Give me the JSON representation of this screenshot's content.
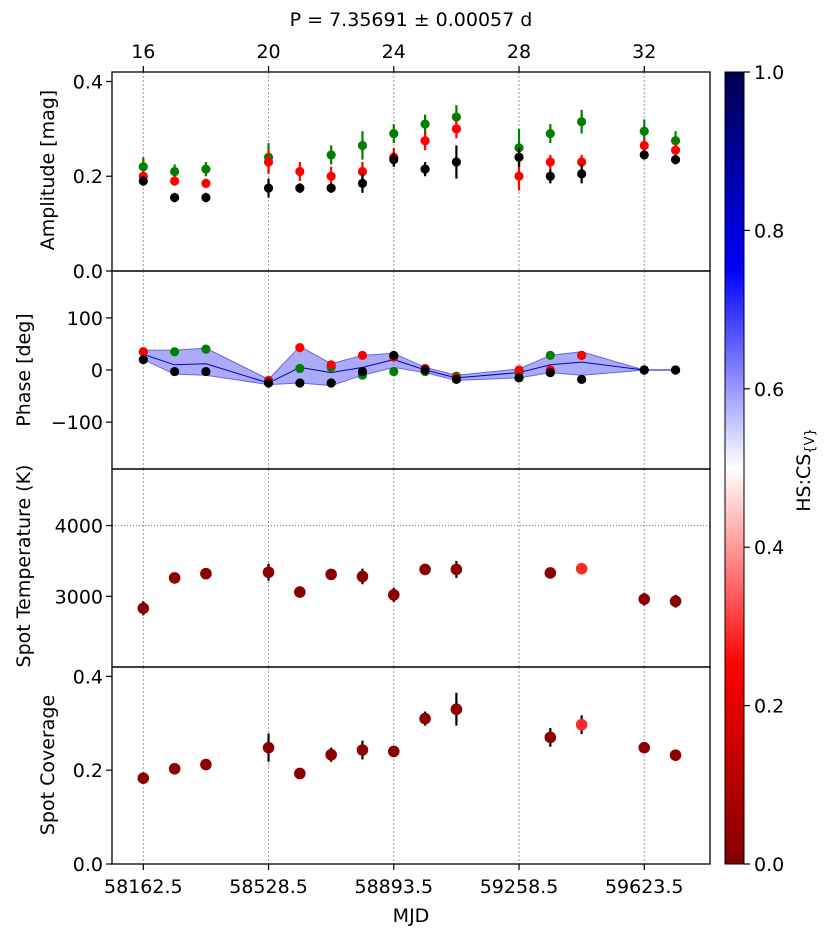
{
  "chart_data": [
    {
      "type": "scatter",
      "panel": "amplitude",
      "title": "P = 7.35691 ± 0.00057 d",
      "top_axis_ticks": [
        "16",
        "20",
        "24",
        "28",
        "32"
      ],
      "top_axis_ticks_values": [
        16,
        20,
        24,
        28,
        32
      ],
      "ylabel": "Amplitude [mag]",
      "ylim": [
        0,
        0.42
      ],
      "yticks": [
        0.0,
        0.2,
        0.4
      ],
      "ytick_labels": [
        "0.0",
        "0.2",
        "0.4"
      ],
      "x": [
        16,
        17,
        18,
        20,
        21,
        22,
        23,
        24,
        25,
        26,
        28,
        29,
        30,
        32,
        33
      ],
      "series": [
        {
          "name": "green",
          "color": "#008000",
          "values": [
            0.22,
            0.21,
            0.215,
            0.24,
            null,
            0.245,
            0.265,
            0.29,
            0.31,
            0.325,
            0.26,
            0.29,
            0.315,
            0.295,
            0.275
          ],
          "errors": [
            0.02,
            0.015,
            0.015,
            0.03,
            null,
            0.02,
            0.03,
            0.02,
            0.02,
            0.025,
            0.04,
            0.02,
            0.025,
            0.025,
            0.02
          ]
        },
        {
          "name": "red",
          "color": "#ff0000",
          "values": [
            0.2,
            0.19,
            0.185,
            0.23,
            0.21,
            0.2,
            0.21,
            0.24,
            0.275,
            0.3,
            0.2,
            0.23,
            0.23,
            0.265,
            0.255
          ],
          "errors": [
            0.01,
            0.01,
            0.01,
            0.025,
            0.02,
            0.02,
            0.02,
            0.02,
            0.02,
            0.02,
            0.03,
            0.015,
            0.015,
            0.015,
            0.015
          ]
        },
        {
          "name": "black",
          "color": "#000000",
          "values": [
            0.19,
            0.155,
            0.155,
            0.175,
            0.175,
            0.175,
            0.185,
            0.235,
            0.215,
            0.23,
            0.24,
            0.2,
            0.205,
            0.245,
            0.235
          ],
          "errors": [
            0.01,
            0.01,
            0.01,
            0.02,
            0.01,
            0.01,
            0.02,
            0.015,
            0.015,
            0.035,
            0.02,
            0.015,
            0.02,
            0.01,
            0.01
          ]
        }
      ]
    },
    {
      "type": "scatter",
      "panel": "phase",
      "ylabel": "Phase [deg]",
      "ylim": [
        -190,
        190
      ],
      "yticks": [
        -100,
        0,
        100
      ],
      "ytick_labels": [
        "−100",
        "0",
        "100"
      ],
      "x": [
        16,
        17,
        18,
        20,
        21,
        22,
        23,
        24,
        25,
        26,
        28,
        29,
        30,
        32,
        33
      ],
      "band": {
        "color": "#6666ee",
        "line_color": "#0000cc",
        "x": [
          16,
          17,
          18,
          20,
          21,
          22,
          23,
          24,
          25,
          26,
          28,
          29,
          30,
          32,
          33
        ],
        "mean": [
          30,
          10,
          12,
          -25,
          5,
          -5,
          5,
          20,
          0,
          -15,
          -5,
          10,
          15,
          0,
          0
        ],
        "lower": [
          20,
          -8,
          -10,
          -28,
          -25,
          -30,
          -10,
          5,
          -5,
          -20,
          -15,
          -5,
          -10,
          0,
          0
        ],
        "upper": [
          38,
          38,
          42,
          -18,
          45,
          12,
          28,
          32,
          5,
          -10,
          2,
          28,
          35,
          0,
          0
        ]
      },
      "series": [
        {
          "name": "green",
          "color": "#008000",
          "values": [
            35,
            35,
            40,
            -20,
            3,
            5,
            -10,
            -3,
            -3,
            -12,
            -5,
            28,
            28,
            0,
            0
          ]
        },
        {
          "name": "red",
          "color": "#ff0000",
          "values": [
            35,
            null,
            null,
            -20,
            43,
            10,
            28,
            25,
            3,
            -15,
            0,
            0,
            28,
            0,
            0
          ]
        },
        {
          "name": "black",
          "color": "#000000",
          "values": [
            20,
            -3,
            -3,
            -25,
            -25,
            -25,
            -3,
            28,
            0,
            -18,
            -15,
            -5,
            -18,
            0,
            0
          ]
        }
      ]
    },
    {
      "type": "scatter",
      "panel": "spot_temperature",
      "ylabel": "Spot Temperature (K)",
      "ylim": [
        2000,
        4800
      ],
      "yticks": [
        3000,
        4000
      ],
      "ytick_labels": [
        "3000",
        "4000"
      ],
      "reference_line": 4000,
      "x": [
        16,
        17,
        18,
        20,
        21,
        22,
        23,
        24,
        25,
        26,
        29,
        30,
        32,
        33
      ],
      "values": [
        2830,
        3260,
        3320,
        3340,
        3060,
        3310,
        3280,
        3020,
        3380,
        3380,
        3330,
        3390,
        2960,
        2930
      ],
      "errors": [
        100,
        40,
        60,
        120,
        80,
        60,
        110,
        100,
        40,
        120,
        70,
        60,
        90,
        90
      ],
      "colors": [
        "#8b0000",
        "#8b0000",
        "#8b0000",
        "#8b0000",
        "#8b0000",
        "#8b0000",
        "#8b0000",
        "#8b0000",
        "#8b0000",
        "#8b0000",
        "#8b0000",
        "#ff2a2a",
        "#8b0000",
        "#8b0000"
      ]
    },
    {
      "type": "scatter",
      "panel": "spot_coverage",
      "ylabel": "Spot Coverage",
      "xlabel": "MJD",
      "ylim": [
        0,
        0.42
      ],
      "yticks": [
        0.0,
        0.2,
        0.4
      ],
      "ytick_labels": [
        "0.0",
        "0.2",
        "0.4"
      ],
      "bottom_axis_ticks": [
        "58162.5",
        "58528.5",
        "58893.5",
        "59258.5",
        "59623.5"
      ],
      "bottom_axis_ticks_values": [
        16,
        20,
        24,
        28,
        32
      ],
      "x": [
        16,
        17,
        18,
        20,
        21,
        22,
        23,
        24,
        25,
        26,
        29,
        30,
        32,
        33
      ],
      "values": [
        0.183,
        0.203,
        0.212,
        0.248,
        0.193,
        0.233,
        0.243,
        0.24,
        0.31,
        0.33,
        0.27,
        0.297,
        0.248,
        0.232
      ],
      "errors": [
        0.005,
        0.005,
        0.01,
        0.03,
        0.005,
        0.015,
        0.02,
        0.005,
        0.015,
        0.035,
        0.02,
        0.02,
        0.005,
        0.005
      ],
      "colors": [
        "#8b0000",
        "#8b0000",
        "#8b0000",
        "#8b0000",
        "#8b0000",
        "#8b0000",
        "#8b0000",
        "#8b0000",
        "#8b0000",
        "#8b0000",
        "#8b0000",
        "#ff2a2a",
        "#8b0000",
        "#8b0000"
      ]
    }
  ],
  "colorbar": {
    "label": "HS:CS",
    "label_sub": "{V}",
    "ticks": [
      "0.0",
      "0.2",
      "0.4",
      "0.6",
      "0.8",
      "1.0"
    ],
    "tick_values": [
      0,
      0.2,
      0.4,
      0.6,
      0.8,
      1.0
    ],
    "colors": [
      "#800000",
      "#ff0000",
      "#ffffff",
      "#0000ff",
      "#000050"
    ]
  }
}
